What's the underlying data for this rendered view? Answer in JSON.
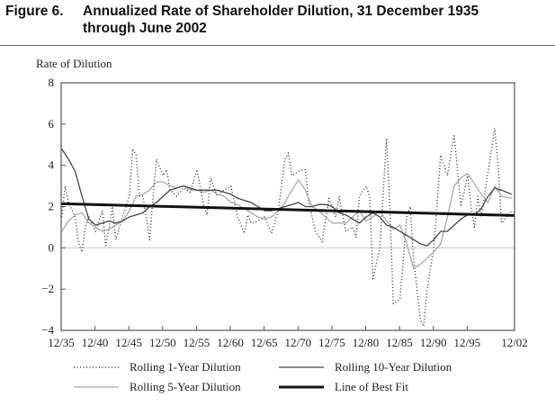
{
  "figure": {
    "number": "Figure 6.",
    "title_line1": "Annualized Rate of Shareholder Dilution, 31 December 1935",
    "title_line2": "through June 2002"
  },
  "chart_data": {
    "type": "line",
    "title": "Annualized Rate of Shareholder Dilution, 31 December 1935 through June 2002",
    "ylabel": "Rate of Dilution",
    "xlabel": "",
    "ylim": [
      -4,
      8
    ],
    "xlim": [
      1935.92,
      2002.92
    ],
    "yticks": [
      8,
      6,
      4,
      2,
      0,
      -2,
      -4
    ],
    "yticklabels": [
      "8",
      "6",
      "4",
      "2",
      "0",
      "−2",
      "−4"
    ],
    "xticks": [
      1935.92,
      1940.92,
      1945.92,
      1950.92,
      1955.92,
      1960.92,
      1965.92,
      1970.92,
      1975.92,
      1980.92,
      1985.92,
      1990.92,
      1995.92,
      2002.92
    ],
    "xticklabels": [
      "12/35",
      "12/40",
      "12/45",
      "12/50",
      "12/55",
      "12/60",
      "12/65",
      "12/70",
      "12/75",
      "12/80",
      "12/85",
      "12/90",
      "12/95",
      "12/02"
    ],
    "zero_line": true,
    "legend_placement": "bottom",
    "series": [
      {
        "name": "Rolling 1-Year Dilution",
        "style": "dotted",
        "color": "#333333",
        "x": [
          1936,
          1936.5,
          1937,
          1938,
          1938.5,
          1939,
          1939.5,
          1940,
          1941,
          1942,
          1942.5,
          1943,
          1943.5,
          1944,
          1945,
          1946,
          1946.5,
          1947,
          1947.5,
          1948,
          1948.5,
          1949,
          1949.5,
          1950,
          1951,
          1951.5,
          1952,
          1953,
          1954,
          1955,
          1956,
          1957,
          1957.5,
          1958,
          1959,
          1960,
          1961,
          1962,
          1963,
          1963.5,
          1964,
          1965,
          1966,
          1967,
          1968,
          1969,
          1969.5,
          1970,
          1971,
          1972,
          1972.5,
          1973.5,
          1974.5,
          1975.5,
          1976.5,
          1977,
          1978,
          1979,
          1979.5,
          1980,
          1981,
          1981.5,
          1982,
          1983,
          1984,
          1984.5,
          1985,
          1986,
          1987,
          1987.5,
          1988,
          1989,
          1989.5,
          1990,
          1991,
          1992,
          1993,
          1994,
          1995,
          1996,
          1996.5,
          1997,
          1997.5,
          1998,
          2000,
          2000.5,
          2001,
          2002.5
        ],
        "y": [
          1.5,
          3.0,
          2.2,
          1.5,
          0.2,
          -0.2,
          1.0,
          1.5,
          0.8,
          1.8,
          0.1,
          1.0,
          2.0,
          0.4,
          1.5,
          2.5,
          4.8,
          4.5,
          2.5,
          2.5,
          1.5,
          0.4,
          2.5,
          4.3,
          3.5,
          3.8,
          2.8,
          2.5,
          2.9,
          2.7,
          3.8,
          2.0,
          1.6,
          3.4,
          2.5,
          2.8,
          3.0,
          1.5,
          0.7,
          1.6,
          1.2,
          1.3,
          1.5,
          0.7,
          1.8,
          4.3,
          4.6,
          3.5,
          3.7,
          3.8,
          2.2,
          0.8,
          0.3,
          2.4,
          1.5,
          2.5,
          0.8,
          1.0,
          0.5,
          2.5,
          3.0,
          2.5,
          -1.5,
          0.0,
          5.3,
          2.0,
          -2.7,
          -2.5,
          1.5,
          2.0,
          -0.5,
          -3.5,
          -3.8,
          -2.0,
          0.0,
          4.5,
          3.5,
          5.5,
          2.0,
          3.5,
          2.0,
          1.0,
          2.5,
          1.5,
          5.8,
          4.0,
          1.2,
          1.8
        ]
      },
      {
        "name": "Rolling 5-Year Dilution",
        "style": "solid",
        "color": "#a8a8a8",
        "x": [
          1936,
          1937,
          1938,
          1939,
          1940,
          1941,
          1942,
          1943,
          1944,
          1945,
          1946,
          1947,
          1948,
          1949,
          1950,
          1951,
          1952,
          1953,
          1954,
          1955,
          1956,
          1957,
          1958,
          1959,
          1960,
          1961,
          1962,
          1963,
          1964,
          1965,
          1966,
          1967,
          1968,
          1969,
          1970,
          1971,
          1972,
          1973,
          1974,
          1975,
          1976,
          1977,
          1978,
          1979,
          1980,
          1981,
          1982,
          1983,
          1984,
          1985,
          1986,
          1987,
          1988,
          1989,
          1990,
          1991,
          1992,
          1993,
          1994,
          1995,
          1996,
          1997,
          1998,
          1999,
          2000,
          2001,
          2002.5
        ],
        "y": [
          0.8,
          1.3,
          1.6,
          1.7,
          1.2,
          1.0,
          0.8,
          0.9,
          1.1,
          1.3,
          1.8,
          2.5,
          2.6,
          2.8,
          3.2,
          3.2,
          3.0,
          2.9,
          3.0,
          2.8,
          2.8,
          2.7,
          2.8,
          2.6,
          2.5,
          2.2,
          2.1,
          1.9,
          1.7,
          1.5,
          1.4,
          1.5,
          1.8,
          2.2,
          2.8,
          3.3,
          2.8,
          2.0,
          1.8,
          1.5,
          1.2,
          1.2,
          1.2,
          1.5,
          1.8,
          1.3,
          1.5,
          1.8,
          1.3,
          0.9,
          1.1,
          0.2,
          -1.0,
          -0.8,
          -0.5,
          -0.2,
          0.2,
          1.5,
          3.0,
          3.4,
          3.6,
          3.1,
          2.6,
          2.2,
          3.0,
          2.5,
          2.4
        ]
      },
      {
        "name": "Rolling 10-Year Dilution",
        "style": "solid",
        "color": "#444444",
        "x": [
          1936,
          1937,
          1938,
          1939,
          1940,
          1941,
          1942,
          1943,
          1944,
          1945,
          1946,
          1947,
          1948,
          1949,
          1950,
          1951,
          1952,
          1953,
          1954,
          1955,
          1956,
          1957,
          1958,
          1959,
          1960,
          1961,
          1962,
          1963,
          1964,
          1965,
          1966,
          1967,
          1968,
          1969,
          1970,
          1971,
          1972,
          1973,
          1974,
          1975,
          1976,
          1977,
          1978,
          1979,
          1980,
          1981,
          1982,
          1983,
          1984,
          1985,
          1986,
          1987,
          1988,
          1989,
          1990,
          1991,
          1992,
          1993,
          1994,
          1995,
          1996,
          1997,
          1998,
          1999,
          2000,
          2001,
          2002.5
        ],
        "y": [
          4.8,
          4.3,
          3.7,
          2.5,
          1.4,
          1.1,
          1.2,
          1.3,
          1.2,
          1.3,
          1.5,
          1.6,
          1.7,
          2.0,
          2.2,
          2.5,
          2.8,
          2.9,
          3.0,
          2.9,
          2.8,
          2.8,
          2.8,
          2.8,
          2.7,
          2.6,
          2.4,
          2.3,
          2.2,
          2.0,
          1.8,
          1.8,
          1.9,
          2.0,
          2.1,
          2.2,
          2.0,
          2.0,
          2.1,
          2.1,
          2.0,
          1.7,
          1.6,
          1.4,
          1.2,
          1.5,
          1.7,
          1.5,
          1.1,
          1.0,
          0.8,
          0.6,
          0.4,
          0.2,
          0.1,
          0.4,
          0.8,
          0.8,
          1.1,
          1.4,
          1.6,
          1.6,
          1.9,
          2.5,
          2.9,
          2.8,
          2.6
        ]
      },
      {
        "name": "Line of Best Fit",
        "style": "thick",
        "color": "#111111",
        "x": [
          1935.92,
          2002.92
        ],
        "y": [
          2.14,
          1.57
        ]
      }
    ]
  }
}
